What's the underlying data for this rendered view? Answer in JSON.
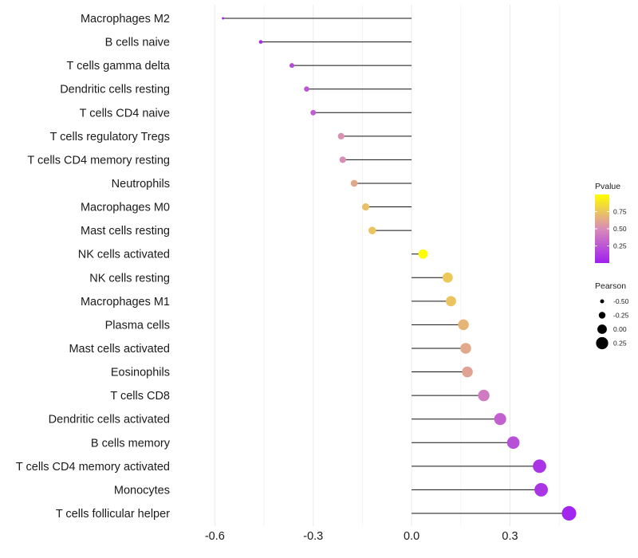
{
  "chart_data": {
    "type": "lollipop",
    "x": {
      "ticks": [
        -0.6,
        -0.3,
        0.0,
        0.3
      ],
      "tick_labels": [
        "-0.6",
        "-0.3",
        "0.0",
        "0.3"
      ],
      "range": [
        -0.72,
        0.52
      ],
      "baseline": 0.0
    },
    "categories": [
      "Macrophages M2",
      "B cells naive",
      "T cells gamma delta",
      "Dendritic cells resting",
      "T cells CD4 naive",
      "T cells regulatory  Tregs",
      "T cells CD4 memory resting",
      "Neutrophils",
      "Macrophages M0",
      "Mast cells resting",
      "NK cells activated",
      "NK cells resting",
      "Macrophages M1",
      "Plasma cells",
      "Mast cells activated",
      "Eosinophils",
      "T cells CD8",
      "Dendritic cells activated",
      "B cells memory",
      "T cells CD4 memory activated",
      "Monocytes",
      "T cells follicular helper"
    ],
    "pearson": [
      -0.575,
      -0.46,
      -0.365,
      -0.32,
      -0.3,
      -0.215,
      -0.21,
      -0.175,
      -0.14,
      -0.12,
      0.035,
      0.11,
      0.12,
      0.158,
      0.165,
      0.17,
      0.22,
      0.27,
      0.31,
      0.39,
      0.395,
      0.48
    ],
    "pvalue": [
      0.02,
      0.05,
      0.2,
      0.25,
      0.28,
      0.52,
      0.5,
      0.62,
      0.72,
      0.74,
      0.99,
      0.76,
      0.74,
      0.68,
      0.62,
      0.6,
      0.42,
      0.3,
      0.22,
      0.1,
      0.1,
      0.03
    ],
    "legend": {
      "color_title": "Pvalue",
      "color_ticks": [
        0.25,
        0.5,
        0.75
      ],
      "color_tick_labels": [
        "0.25",
        "0.50",
        "0.75"
      ],
      "color_range": [
        0.0,
        1.0
      ],
      "color_low": "#9f1ff0",
      "color_high": "#ffff00",
      "size_title": "Pearson",
      "size_values": [
        -0.5,
        -0.25,
        0.0,
        0.25
      ],
      "size_labels": [
        "-0.50",
        "-0.25",
        "0.00",
        "0.25"
      ],
      "placement": "right"
    },
    "grid": true
  }
}
